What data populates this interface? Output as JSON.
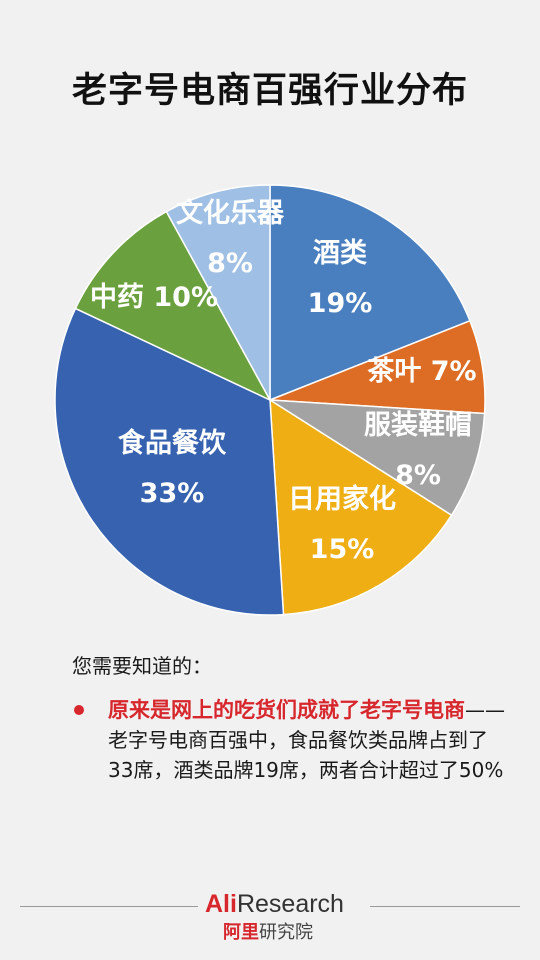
{
  "title": "老字号电商百强行业分布",
  "chart_data": {
    "type": "pie",
    "title": "老字号电商百强行业分布",
    "slices": [
      {
        "name": "酒类",
        "value": 19,
        "label": "19%",
        "color": "#4a7fbf"
      },
      {
        "name": "茶叶",
        "value": 7,
        "label": "7%",
        "color": "#dd6d24"
      },
      {
        "name": "服装鞋帽",
        "value": 8,
        "label": "8%",
        "color": "#a3a3a3"
      },
      {
        "name": "日用家化",
        "value": 15,
        "label": "15%",
        "color": "#eeae14"
      },
      {
        "name": "食品餐饮",
        "value": 33,
        "label": "33%",
        "color": "#3662b0"
      },
      {
        "name": "中药",
        "value": 10,
        "label": "10%",
        "color": "#6aa13e"
      },
      {
        "name": "文化乐器",
        "value": 8,
        "label": "8%",
        "color": "#9fc0e4"
      }
    ]
  },
  "notes": {
    "heading": "您需要知道的：",
    "highlight": "原来是网上的吃货们成就了老字号电商",
    "body": "——老字号电商百强中，食品餐饮类品牌占到了33席，酒类品牌19席，两者合计超过了50%"
  },
  "footer": {
    "logo_ali": "Ali",
    "logo_research": "Research",
    "logo_cn_brand": "阿里",
    "logo_cn_rest": "研究院"
  }
}
